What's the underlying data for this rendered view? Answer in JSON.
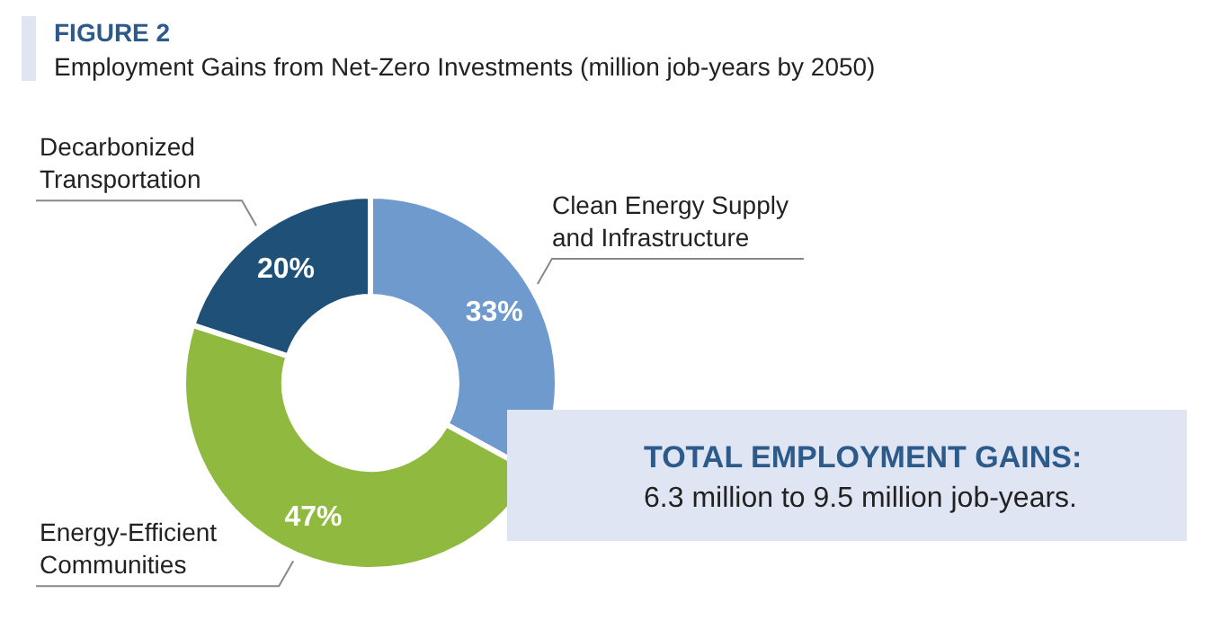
{
  "chart_data": {
    "type": "donut",
    "title": "FIGURE 2",
    "subtitle": "Employment Gains from Net-Zero Investments (million job-years by 2050)",
    "categories": [
      "Clean Energy Supply and Infrastructure",
      "Energy-Efficient Communities",
      "Decarbonized Transportation"
    ],
    "values": [
      33,
      47,
      20
    ],
    "colors": [
      "#6f9acd",
      "#8fba3f",
      "#1f5078"
    ],
    "value_labels": [
      "33%",
      "47%",
      "20%"
    ],
    "annotations": [
      "TOTAL EMPLOYMENT GAINS:",
      "6.3 million to 9.5 million job-years."
    ]
  }
}
